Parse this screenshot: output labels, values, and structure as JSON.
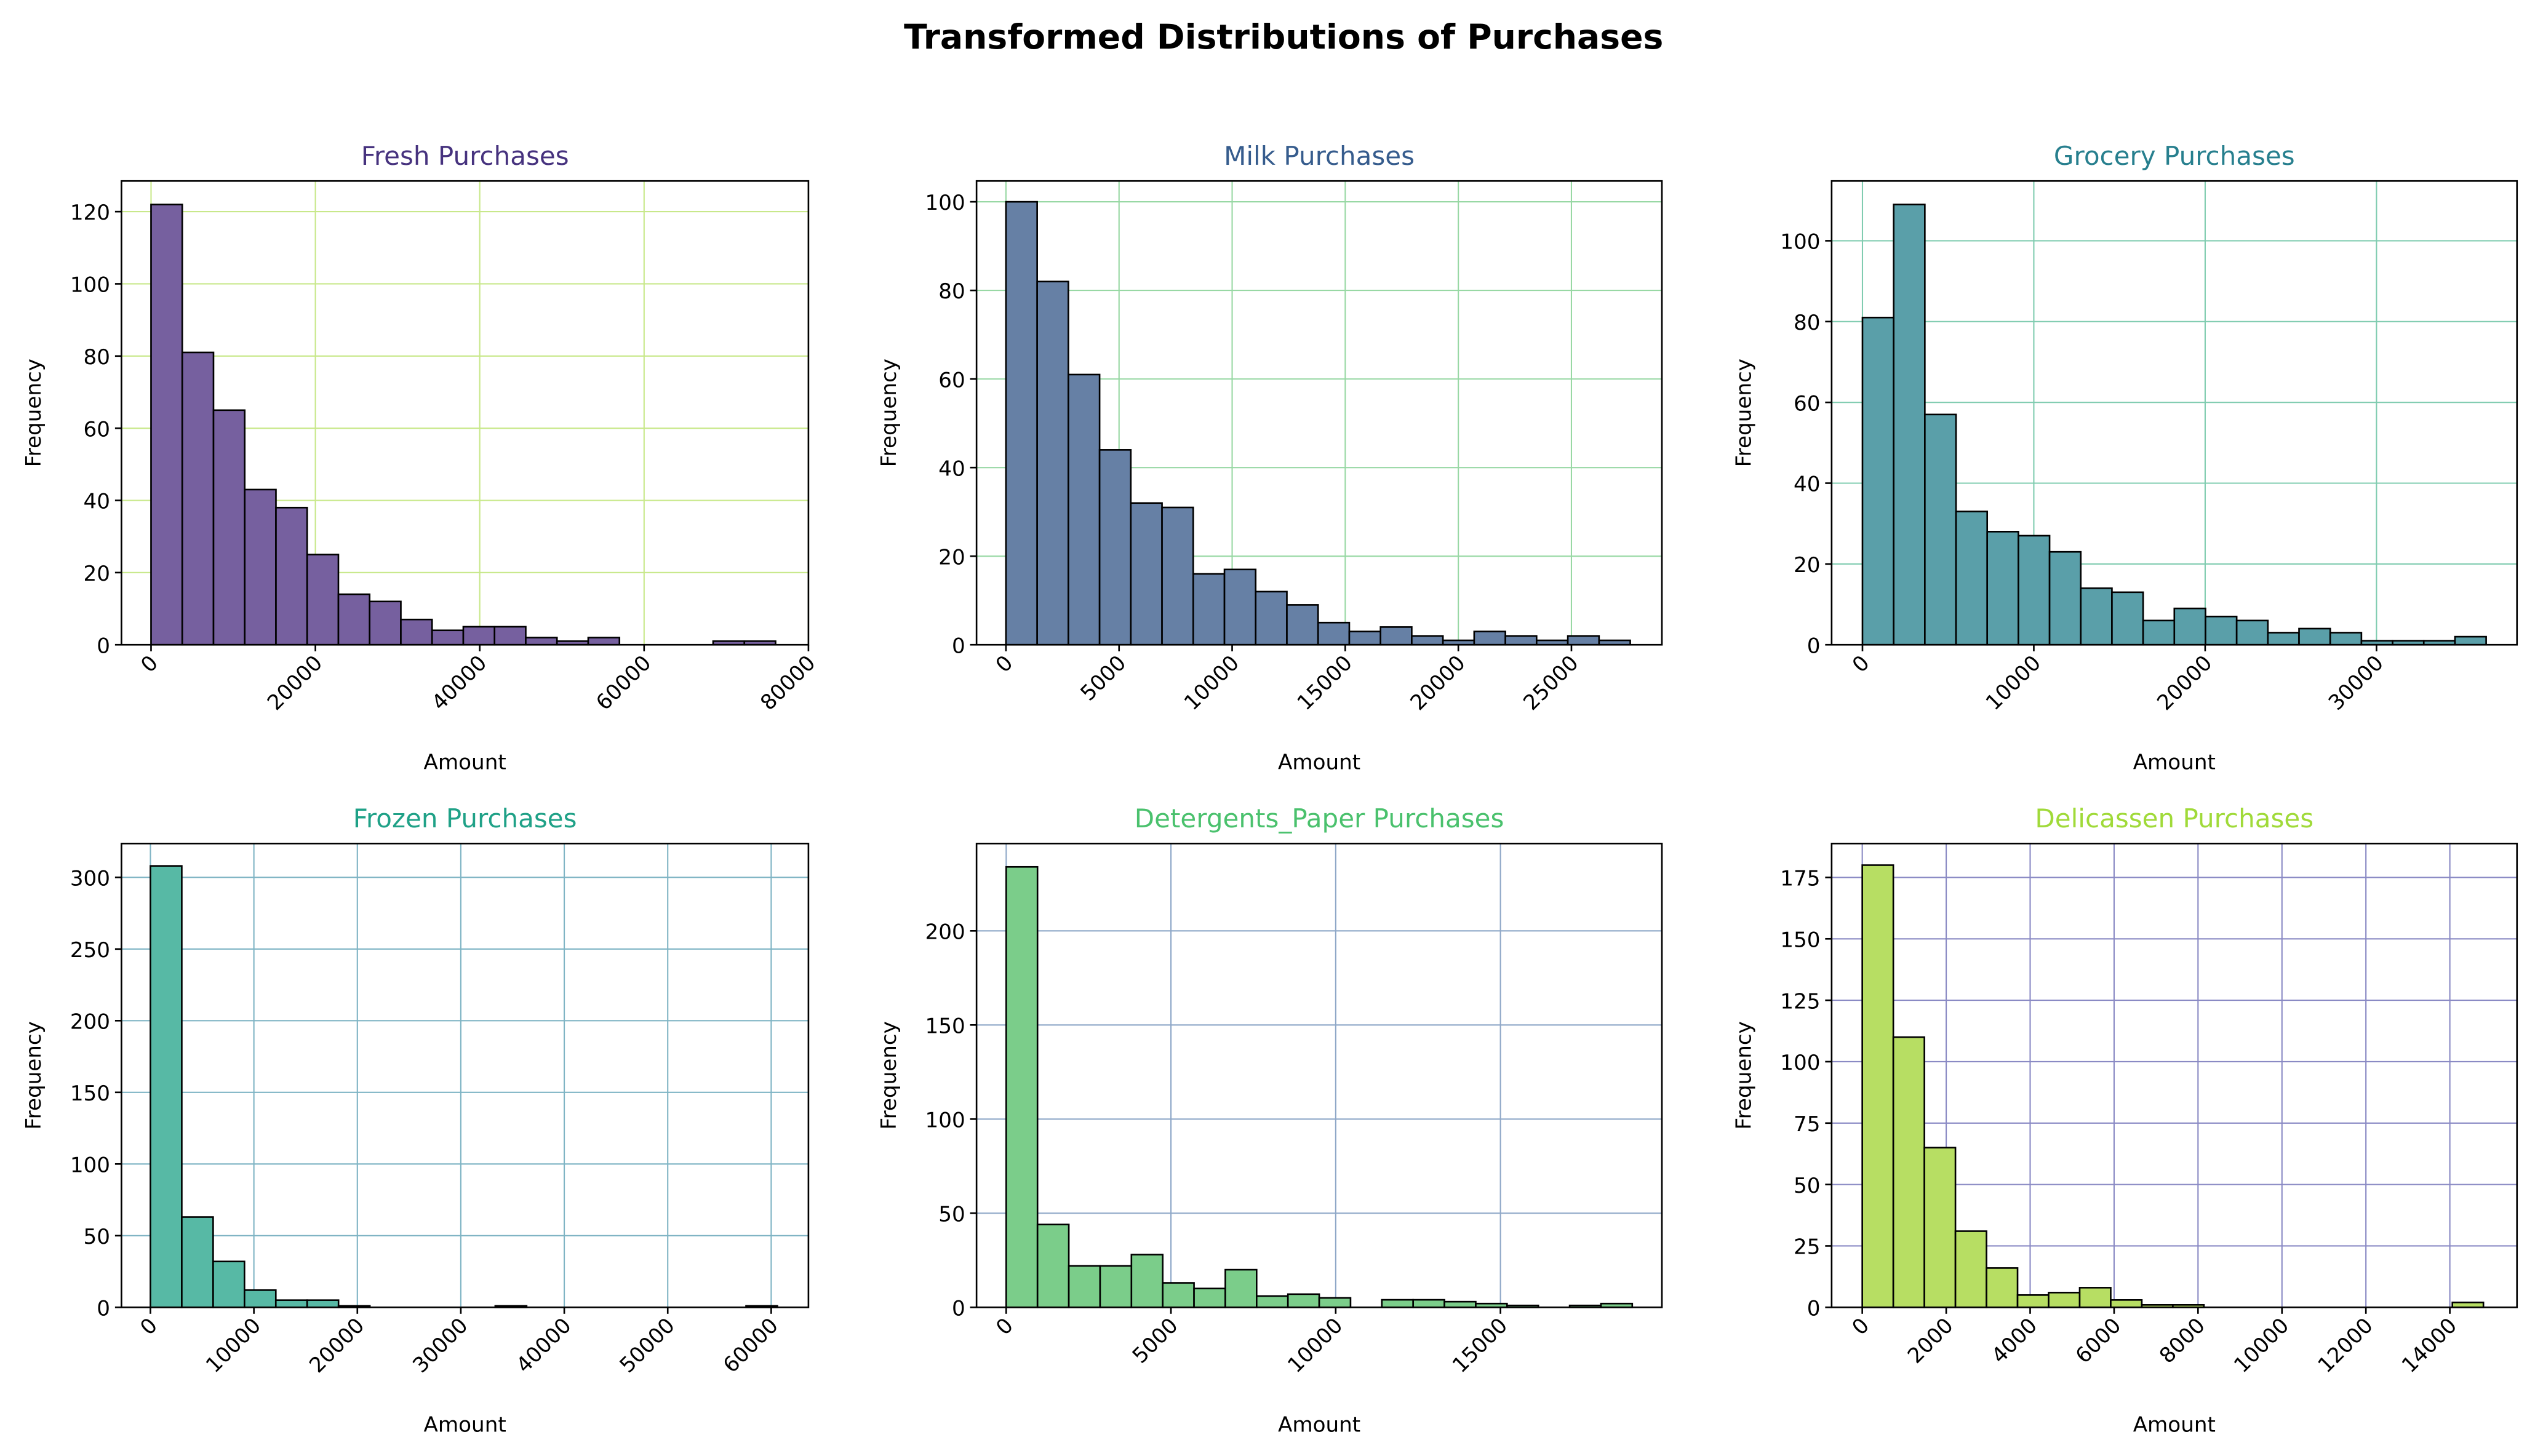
{
  "title": "Transformed Distributions of Purchases",
  "chart_data": [
    {
      "type": "histogram",
      "title": "Fresh Purchases",
      "title_color": "#46327e",
      "color": "#76609f",
      "grid_color": "#c8e88a",
      "grid": true,
      "xlabel": "Amount",
      "ylabel": "Frequency",
      "bins": [
        0,
        3800,
        7600,
        11400,
        15200,
        19000,
        22800,
        26600,
        30400,
        34200,
        38000,
        41800,
        45600,
        49400,
        53200,
        57000,
        60800,
        64600,
        68400,
        72200,
        76000
      ],
      "counts": [
        122,
        81,
        65,
        43,
        38,
        25,
        14,
        12,
        7,
        4,
        5,
        5,
        2,
        1,
        2,
        0,
        0,
        0,
        1,
        1
      ],
      "xlim": [
        -3600,
        80000
      ],
      "xticks": [
        0,
        20000,
        40000,
        60000,
        80000
      ],
      "ylim": [
        0,
        128.5
      ],
      "yticks": [
        0,
        20,
        40,
        60,
        80,
        100,
        120
      ]
    },
    {
      "type": "histogram",
      "title": "Milk Purchases",
      "title_color": "#365c8d",
      "color": "#6680a5",
      "grid_color": "#98d8a4",
      "grid": true,
      "xlabel": "Amount",
      "ylabel": "Frequency",
      "bins": [
        0,
        1380,
        2760,
        4140,
        5520,
        6900,
        8280,
        9660,
        11040,
        12420,
        13800,
        15180,
        16560,
        17940,
        19320,
        20700,
        22080,
        23460,
        24840,
        26220,
        27600
      ],
      "counts": [
        100,
        82,
        61,
        44,
        32,
        31,
        16,
        17,
        12,
        9,
        5,
        3,
        4,
        2,
        1,
        3,
        2,
        1,
        2,
        1
      ],
      "xlim": [
        -1300,
        29000
      ],
      "xticks": [
        0,
        5000,
        10000,
        15000,
        20000,
        25000
      ],
      "ylim": [
        0,
        104.7
      ],
      "yticks": [
        0,
        20,
        40,
        60,
        80,
        100
      ]
    },
    {
      "type": "histogram",
      "title": "Grocery Purchases",
      "title_color": "#277f8e",
      "color": "#5a9fa9",
      "grid_color": "#80ccb0",
      "grid": true,
      "xlabel": "Amount",
      "ylabel": "Frequency",
      "bins": [
        0,
        1820,
        3640,
        5460,
        7280,
        9100,
        10920,
        12740,
        14560,
        16380,
        18200,
        20020,
        21840,
        23660,
        25480,
        27300,
        29120,
        30940,
        32760,
        34580,
        36400
      ],
      "counts": [
        81,
        109,
        57,
        33,
        28,
        27,
        23,
        14,
        13,
        6,
        9,
        7,
        6,
        3,
        4,
        3,
        1,
        1,
        1,
        2
      ],
      "xlim": [
        -1800,
        38200
      ],
      "xticks": [
        0,
        10000,
        20000,
        30000
      ],
      "ylim": [
        0,
        114.8
      ],
      "yticks": [
        0,
        20,
        40,
        60,
        80,
        100
      ]
    },
    {
      "type": "histogram",
      "title": "Frozen Purchases",
      "title_color": "#1fa187",
      "color": "#57b9a5",
      "grid_color": "#7fb4c4",
      "grid": true,
      "xlabel": "Amount",
      "ylabel": "Frequency",
      "bins": [
        0,
        3030,
        6060,
        9090,
        12120,
        15150,
        18180,
        21210,
        24240,
        27270,
        30300,
        33330,
        36360,
        39390,
        42420,
        45450,
        48480,
        51510,
        54540,
        57570,
        60600
      ],
      "counts": [
        308,
        63,
        32,
        12,
        5,
        5,
        1,
        0,
        0,
        0,
        0,
        1,
        0,
        0,
        0,
        0,
        0,
        0,
        0,
        1
      ],
      "xlim": [
        -2800,
        63600
      ],
      "xticks": [
        0,
        10000,
        20000,
        30000,
        40000,
        50000,
        60000
      ],
      "ylim": [
        0,
        323.6
      ],
      "yticks": [
        0,
        50,
        100,
        150,
        200,
        250,
        300
      ]
    },
    {
      "type": "histogram",
      "title": "Detergents_Paper Purchases",
      "title_color": "#4ac16d",
      "color": "#7bcd8a",
      "grid_color": "#8fa8c8",
      "grid": true,
      "xlabel": "Amount",
      "ylabel": "Frequency",
      "bins": [
        0,
        950,
        1900,
        2850,
        3800,
        4750,
        5700,
        6650,
        7600,
        8550,
        9500,
        10450,
        11400,
        12350,
        13300,
        14250,
        15200,
        16150,
        17100,
        18050,
        19000
      ],
      "counts": [
        234,
        44,
        22,
        22,
        28,
        13,
        10,
        20,
        6,
        7,
        5,
        0,
        4,
        4,
        3,
        2,
        1,
        0,
        1,
        2
      ],
      "xlim": [
        -900,
        19900
      ],
      "xticks": [
        0,
        5000,
        10000,
        15000
      ],
      "ylim": [
        0,
        246.4
      ],
      "yticks": [
        0,
        50,
        100,
        150,
        200
      ]
    },
    {
      "type": "histogram",
      "title": "Delicassen Purchases",
      "title_color": "#a0da39",
      "color": "#b7de63",
      "grid_color": "#8a8ac4",
      "grid": true,
      "xlabel": "Amount",
      "ylabel": "Frequency",
      "bins": [
        0,
        740,
        1480,
        2220,
        2960,
        3700,
        4440,
        5180,
        5920,
        6660,
        7400,
        8140,
        8880,
        9620,
        10360,
        11100,
        11840,
        12580,
        13320,
        14060,
        14800
      ],
      "counts": [
        180,
        110,
        65,
        31,
        16,
        5,
        6,
        8,
        3,
        1,
        1,
        0,
        0,
        0,
        0,
        0,
        0,
        0,
        0,
        2
      ],
      "xlim": [
        -730,
        15600
      ],
      "xticks": [
        0,
        2000,
        4000,
        6000,
        8000,
        10000,
        12000,
        14000
      ],
      "ylim": [
        0,
        188.8
      ],
      "yticks": [
        0,
        25,
        50,
        75,
        100,
        125,
        150,
        175
      ]
    }
  ]
}
